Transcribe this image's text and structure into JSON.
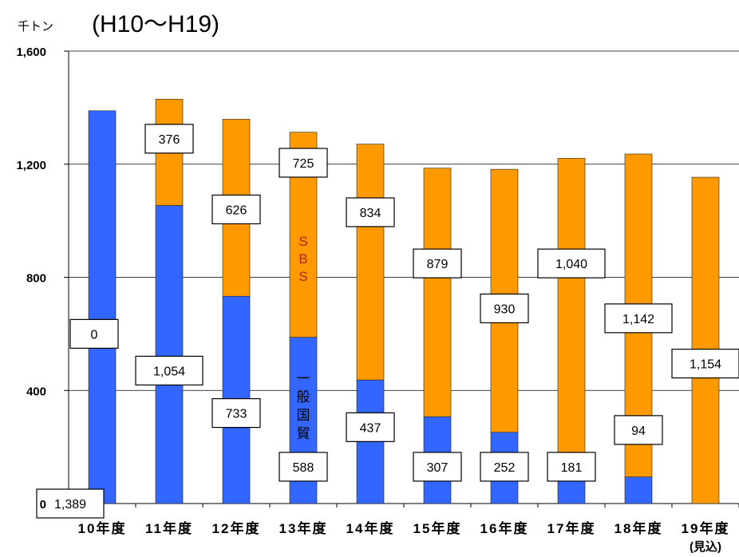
{
  "chart_data": {
    "type": "bar",
    "stacked": true,
    "title": "(H10～H19)",
    "unit_label": "千トン",
    "ylim": [
      0,
      1600
    ],
    "yticks": [
      {
        "value": 0,
        "label": "0"
      },
      {
        "value": 400,
        "label": "400"
      },
      {
        "value": 800,
        "label": "800"
      },
      {
        "value": 1200,
        "label": "1,200"
      },
      {
        "value": 1600,
        "label": "1,600"
      }
    ],
    "categories": [
      "10年度",
      "11年度",
      "12年度",
      "13年度",
      "14年度",
      "15年度",
      "16年度",
      "17年度",
      "18年度",
      "19年度"
    ],
    "category_sublabels": [
      "",
      "",
      "",
      "",
      "",
      "",
      "",
      "",
      "",
      "(見込)"
    ],
    "series": [
      {
        "name": "一般国貿",
        "color": "#3366ff",
        "values": [
          1389,
          1054,
          733,
          588,
          437,
          307,
          252,
          181,
          94,
          0
        ],
        "labels": [
          "1,389",
          "1,054",
          "733",
          "588",
          "437",
          "307",
          "252",
          "181",
          "94",
          ""
        ]
      },
      {
        "name": "SBS",
        "color": "#ff9900",
        "values": [
          0,
          376,
          626,
          725,
          834,
          879,
          930,
          1040,
          1142,
          1154
        ],
        "labels": [
          "0",
          "376",
          "626",
          "725",
          "834",
          "879",
          "930",
          "1,040",
          "1,142",
          "1,154"
        ]
      }
    ],
    "grid": true
  }
}
